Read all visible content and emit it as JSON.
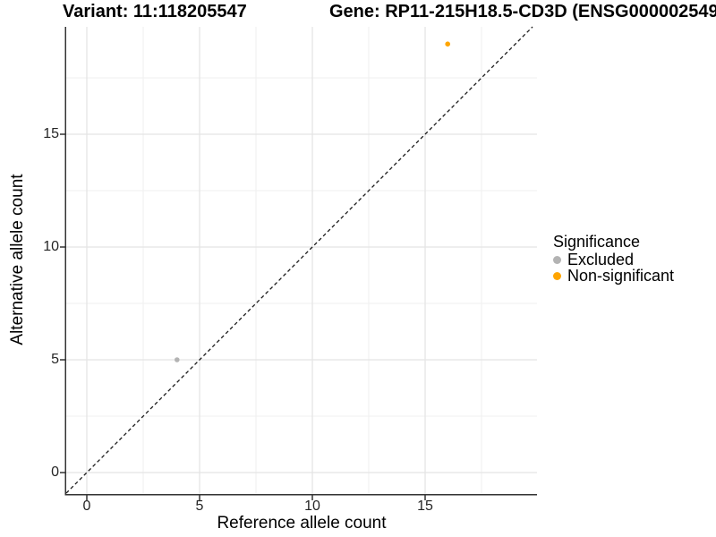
{
  "header": {
    "variant_title": "Variant: 11:118205547",
    "gene_title": "Gene: RP11-215H18.5-CD3D (ENSG000002549"
  },
  "chart_data": {
    "type": "scatter",
    "xlabel": "Reference allele count",
    "ylabel": "Alternative allele count",
    "xlim": [
      -0.95,
      19.95
    ],
    "ylim": [
      -0.95,
      19.8
    ],
    "x_major_ticks": [
      0,
      5,
      10,
      15
    ],
    "y_major_ticks": [
      0,
      5,
      10,
      15
    ],
    "x_minor_ticks": [
      2.5,
      7.5,
      12.5,
      17.5
    ],
    "y_minor_ticks": [
      2.5,
      7.5,
      12.5,
      17.5
    ],
    "grid": true,
    "identity_line": {
      "slope": 1,
      "intercept": 0,
      "style": "dashed"
    },
    "points": [
      {
        "x": 4,
        "y": 5,
        "series": "Excluded"
      },
      {
        "x": 16,
        "y": 19,
        "series": "Non-significant"
      }
    ],
    "series_colors": {
      "Excluded": "#b3b3b3",
      "Non-significant": "#ffa500"
    },
    "legend": {
      "title": "Significance",
      "position": "right",
      "items": [
        {
          "label": "Excluded",
          "color": "#b3b3b3"
        },
        {
          "label": "Non-significant",
          "color": "#ffa500"
        }
      ]
    },
    "colors": {
      "grid_major": "#e4e4e4",
      "grid_minor": "#efefef",
      "axis": "#333333",
      "dashed_line": "#1a1a1a"
    }
  }
}
